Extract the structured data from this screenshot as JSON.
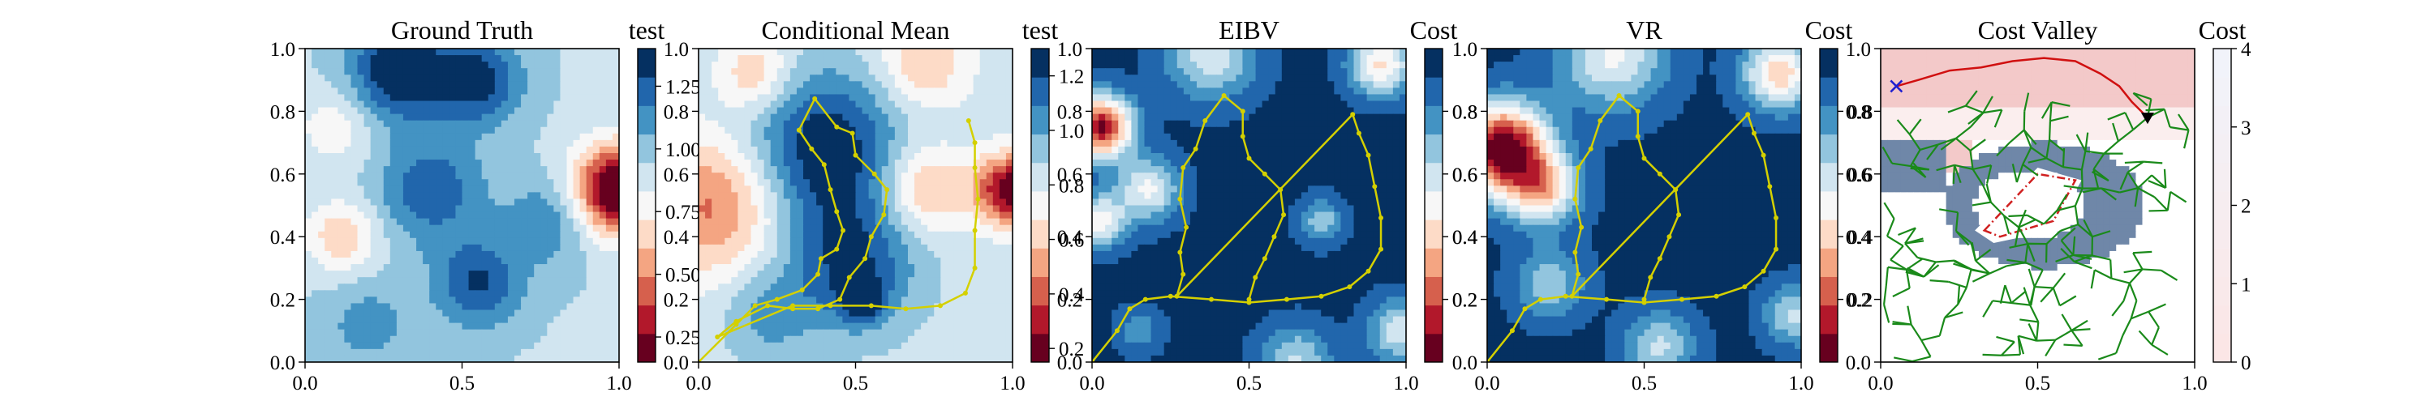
{
  "chart_data": [
    {
      "type": "heatmap",
      "title": "Ground Truth",
      "colorbar_label": "test",
      "x_ticks": [
        "0.0",
        "0.5",
        "1.0"
      ],
      "y_ticks": [
        "0.0",
        "0.2",
        "0.4",
        "0.6",
        "0.8",
        "1.0"
      ],
      "xlim": [
        0,
        1
      ],
      "ylim": [
        0,
        1
      ],
      "colorbar_range": [
        0.15,
        1.4
      ],
      "colorbar_ticks": [
        "0.25",
        "0.50",
        "0.75",
        "1.00",
        "1.25"
      ],
      "colorbar_tick_values": [
        0.25,
        0.5,
        0.75,
        1.0,
        1.25
      ],
      "blobs": [
        {
          "x": 0.3,
          "y": 0.93,
          "r": 0.11,
          "a": 0.55
        },
        {
          "x": 0.55,
          "y": 0.9,
          "r": 0.1,
          "a": 0.45
        },
        {
          "x": 0.4,
          "y": 0.55,
          "r": 0.12,
          "a": 0.35
        },
        {
          "x": 0.55,
          "y": 0.25,
          "r": 0.1,
          "a": 0.4
        },
        {
          "x": 0.78,
          "y": 0.45,
          "r": 0.1,
          "a": 0.25
        },
        {
          "x": 0.12,
          "y": 0.4,
          "r": 0.08,
          "a": -0.35
        },
        {
          "x": 0.2,
          "y": 0.12,
          "r": 0.1,
          "a": 0.2
        },
        {
          "x": 1.0,
          "y": 0.55,
          "r": 0.1,
          "a": -1.0
        },
        {
          "x": 0.1,
          "y": 0.75,
          "r": 0.09,
          "a": -0.2
        }
      ],
      "base": 0.95,
      "path": [],
      "overlay": "none"
    },
    {
      "type": "heatmap",
      "title": "Conditional Mean",
      "colorbar_label": "test",
      "x_ticks": [
        "0.0",
        "0.5",
        "1.0"
      ],
      "y_ticks": [
        "0.0",
        "0.2",
        "0.4",
        "0.6",
        "0.8",
        "1.0"
      ],
      "xlim": [
        0,
        1
      ],
      "ylim": [
        0,
        1
      ],
      "colorbar_range": [
        0.15,
        1.3
      ],
      "colorbar_ticks": [
        "0.2",
        "0.4",
        "0.6",
        "0.8",
        "1.0",
        "1.2"
      ],
      "colorbar_tick_values": [
        0.2,
        0.4,
        0.6,
        0.8,
        1.0,
        1.2
      ],
      "blobs": [
        {
          "x": 0.4,
          "y": 0.68,
          "r": 0.17,
          "a": 0.5
        },
        {
          "x": 0.48,
          "y": 0.32,
          "r": 0.15,
          "a": 0.4
        },
        {
          "x": 0.52,
          "y": 0.2,
          "r": 0.05,
          "a": 0.35
        },
        {
          "x": 0.05,
          "y": 0.5,
          "r": 0.16,
          "a": -0.45
        },
        {
          "x": 0.18,
          "y": 0.92,
          "r": 0.08,
          "a": -0.3
        },
        {
          "x": 0.72,
          "y": 0.95,
          "r": 0.1,
          "a": -0.3
        },
        {
          "x": 0.72,
          "y": 0.55,
          "r": 0.1,
          "a": -0.35
        },
        {
          "x": 1.0,
          "y": 0.55,
          "r": 0.08,
          "a": -0.75
        },
        {
          "x": 0.22,
          "y": 0.15,
          "r": 0.1,
          "a": 0.2
        }
      ],
      "base": 0.85,
      "path": [
        [
          0.0,
          0.0
        ],
        [
          0.12,
          0.12
        ],
        [
          0.18,
          0.18
        ],
        [
          0.25,
          0.2
        ],
        [
          0.33,
          0.23
        ],
        [
          0.38,
          0.28
        ],
        [
          0.39,
          0.33
        ],
        [
          0.44,
          0.36
        ],
        [
          0.46,
          0.42
        ],
        [
          0.44,
          0.48
        ],
        [
          0.42,
          0.55
        ],
        [
          0.4,
          0.63
        ],
        [
          0.36,
          0.68
        ],
        [
          0.32,
          0.74
        ],
        [
          0.37,
          0.84
        ],
        [
          0.44,
          0.75
        ],
        [
          0.49,
          0.73
        ],
        [
          0.5,
          0.66
        ],
        [
          0.56,
          0.6
        ],
        [
          0.6,
          0.55
        ],
        [
          0.59,
          0.47
        ],
        [
          0.55,
          0.4
        ],
        [
          0.53,
          0.33
        ],
        [
          0.48,
          0.27
        ],
        [
          0.45,
          0.2
        ],
        [
          0.38,
          0.17
        ],
        [
          0.3,
          0.17
        ],
        [
          0.22,
          0.18
        ],
        [
          0.12,
          0.13
        ],
        [
          0.06,
          0.08
        ],
        [
          0.3,
          0.18
        ],
        [
          0.42,
          0.18
        ],
        [
          0.55,
          0.18
        ],
        [
          0.66,
          0.17
        ],
        [
          0.77,
          0.18
        ],
        [
          0.85,
          0.22
        ],
        [
          0.88,
          0.3
        ],
        [
          0.88,
          0.42
        ],
        [
          0.89,
          0.52
        ],
        [
          0.88,
          0.62
        ],
        [
          0.88,
          0.7
        ],
        [
          0.86,
          0.77
        ]
      ],
      "overlay": "none"
    },
    {
      "type": "heatmap",
      "title": "EIBV",
      "colorbar_label": "Cost",
      "x_ticks": [
        "0.0",
        "0.5",
        "1.0"
      ],
      "y_ticks": [
        "0.0",
        "0.2",
        "0.4",
        "0.6",
        "0.8",
        "1.0"
      ],
      "xlim": [
        0,
        1
      ],
      "ylim": [
        0,
        1
      ],
      "colorbar_range": [
        0.0,
        1.0
      ],
      "colorbar_ticks": [
        "0.2",
        "0.4",
        "0.6",
        "0.8"
      ],
      "colorbar_tick_values": [
        0.2,
        0.4,
        0.6,
        0.8
      ],
      "blobs": [
        {
          "x": 0.03,
          "y": 0.75,
          "r": 0.07,
          "a": -0.95
        },
        {
          "x": 0.02,
          "y": 0.45,
          "r": 0.06,
          "a": -0.5
        },
        {
          "x": 0.38,
          "y": 0.98,
          "r": 0.1,
          "a": -0.4
        },
        {
          "x": 0.92,
          "y": 0.95,
          "r": 0.07,
          "a": -0.55
        },
        {
          "x": 0.73,
          "y": 0.45,
          "r": 0.05,
          "a": -0.3
        },
        {
          "x": 0.18,
          "y": 0.55,
          "r": 0.07,
          "a": -0.45
        },
        {
          "x": 0.65,
          "y": 0.0,
          "r": 0.08,
          "a": -0.35
        },
        {
          "x": 0.98,
          "y": 0.1,
          "r": 0.07,
          "a": -0.4
        },
        {
          "x": 0.15,
          "y": 0.1,
          "r": 0.05,
          "a": -0.2
        }
      ],
      "base": 0.98,
      "path": [
        [
          0.0,
          0.0
        ],
        [
          0.08,
          0.1
        ],
        [
          0.12,
          0.17
        ],
        [
          0.17,
          0.2
        ],
        [
          0.25,
          0.21
        ],
        [
          0.38,
          0.2
        ],
        [
          0.5,
          0.19
        ],
        [
          0.62,
          0.2
        ],
        [
          0.73,
          0.21
        ],
        [
          0.82,
          0.24
        ],
        [
          0.88,
          0.29
        ],
        [
          0.92,
          0.36
        ],
        [
          0.92,
          0.46
        ],
        [
          0.9,
          0.56
        ],
        [
          0.88,
          0.66
        ],
        [
          0.85,
          0.73
        ],
        [
          0.83,
          0.79
        ],
        [
          0.27,
          0.21
        ],
        [
          0.29,
          0.28
        ],
        [
          0.28,
          0.35
        ],
        [
          0.3,
          0.43
        ],
        [
          0.28,
          0.52
        ],
        [
          0.29,
          0.62
        ],
        [
          0.33,
          0.68
        ],
        [
          0.36,
          0.77
        ],
        [
          0.42,
          0.85
        ],
        [
          0.48,
          0.8
        ],
        [
          0.48,
          0.72
        ],
        [
          0.5,
          0.65
        ],
        [
          0.55,
          0.6
        ],
        [
          0.6,
          0.55
        ],
        [
          0.61,
          0.47
        ],
        [
          0.58,
          0.4
        ],
        [
          0.55,
          0.33
        ],
        [
          0.52,
          0.27
        ],
        [
          0.5,
          0.2
        ]
      ],
      "overlay": "none"
    },
    {
      "type": "heatmap",
      "title": "VR",
      "colorbar_label": "Cost",
      "x_ticks": [
        "0.0",
        "0.5",
        "1.0"
      ],
      "y_ticks": [
        "0.0",
        "0.2",
        "0.4",
        "0.6",
        "0.8",
        "1.0"
      ],
      "xlim": [
        0,
        1
      ],
      "ylim": [
        0,
        1
      ],
      "colorbar_range": [
        0.0,
        1.0
      ],
      "colorbar_ticks": [
        "0.2",
        "0.4",
        "0.6",
        "0.8"
      ],
      "colorbar_tick_values": [
        0.2,
        0.4,
        0.6,
        0.8
      ],
      "blobs": [
        {
          "x": 0.05,
          "y": 0.68,
          "r": 0.1,
          "a": -1.05
        },
        {
          "x": 0.4,
          "y": 0.98,
          "r": 0.12,
          "a": -0.45
        },
        {
          "x": 0.93,
          "y": 0.92,
          "r": 0.08,
          "a": -0.6
        },
        {
          "x": 0.18,
          "y": 0.55,
          "r": 0.08,
          "a": -0.55
        },
        {
          "x": 0.2,
          "y": 0.25,
          "r": 0.08,
          "a": -0.3
        },
        {
          "x": 0.55,
          "y": 0.05,
          "r": 0.08,
          "a": -0.35
        },
        {
          "x": 0.98,
          "y": 0.15,
          "r": 0.07,
          "a": -0.35
        }
      ],
      "base": 0.98,
      "path": [
        [
          0.0,
          0.0
        ],
        [
          0.08,
          0.1
        ],
        [
          0.12,
          0.17
        ],
        [
          0.17,
          0.2
        ],
        [
          0.25,
          0.21
        ],
        [
          0.38,
          0.2
        ],
        [
          0.5,
          0.19
        ],
        [
          0.62,
          0.2
        ],
        [
          0.73,
          0.21
        ],
        [
          0.82,
          0.24
        ],
        [
          0.88,
          0.29
        ],
        [
          0.92,
          0.36
        ],
        [
          0.92,
          0.46
        ],
        [
          0.9,
          0.56
        ],
        [
          0.88,
          0.66
        ],
        [
          0.85,
          0.73
        ],
        [
          0.83,
          0.79
        ],
        [
          0.27,
          0.21
        ],
        [
          0.29,
          0.28
        ],
        [
          0.28,
          0.35
        ],
        [
          0.3,
          0.43
        ],
        [
          0.28,
          0.52
        ],
        [
          0.29,
          0.62
        ],
        [
          0.33,
          0.68
        ],
        [
          0.36,
          0.77
        ],
        [
          0.42,
          0.85
        ],
        [
          0.48,
          0.8
        ],
        [
          0.48,
          0.72
        ],
        [
          0.5,
          0.65
        ],
        [
          0.55,
          0.6
        ],
        [
          0.6,
          0.55
        ],
        [
          0.61,
          0.47
        ],
        [
          0.58,
          0.4
        ],
        [
          0.55,
          0.33
        ],
        [
          0.52,
          0.27
        ],
        [
          0.5,
          0.2
        ]
      ],
      "overlay": "none"
    },
    {
      "type": "heatmap",
      "title": "Cost Valley",
      "colorbar_label": "Cost",
      "x_ticks": [
        "0.0",
        "0.5",
        "1.0"
      ],
      "y_ticks": [
        "0.0",
        "0.2",
        "0.4",
        "0.6",
        "0.8",
        "1.0"
      ],
      "xlim": [
        0,
        1
      ],
      "ylim": [
        0,
        1
      ],
      "colorbar_range": [
        0,
        4
      ],
      "colorbar_ticks": [
        "0",
        "1",
        "2",
        "3",
        "4"
      ],
      "colorbar_tick_values": [
        0,
        1,
        2,
        3,
        4
      ],
      "blobs": [],
      "base": 0,
      "path": [],
      "overlay": "cost_valley",
      "start_marker": {
        "x": 0.05,
        "y": 0.88,
        "color": "#1f1fd0"
      },
      "end_marker": {
        "x": 0.85,
        "y": 0.78,
        "color": "#000000"
      },
      "red_path": [
        [
          0.05,
          0.88
        ],
        [
          0.12,
          0.9
        ],
        [
          0.22,
          0.93
        ],
        [
          0.32,
          0.94
        ],
        [
          0.42,
          0.96
        ],
        [
          0.52,
          0.97
        ],
        [
          0.62,
          0.96
        ],
        [
          0.7,
          0.92
        ],
        [
          0.76,
          0.88
        ],
        [
          0.8,
          0.83
        ],
        [
          0.85,
          0.78
        ]
      ],
      "obstacle": [
        [
          0.33,
          0.42
        ],
        [
          0.5,
          0.6
        ],
        [
          0.62,
          0.58
        ],
        [
          0.55,
          0.45
        ],
        [
          0.38,
          0.4
        ]
      ],
      "highlight": [
        [
          0.3,
          0.42
        ],
        [
          0.5,
          0.62
        ],
        [
          0.64,
          0.58
        ],
        [
          0.55,
          0.42
        ],
        [
          0.36,
          0.38
        ]
      ]
    }
  ],
  "colors": {
    "rdbu": [
      "#67001f",
      "#b2182b",
      "#d6604d",
      "#f4a582",
      "#fddbc7",
      "#f7f7f7",
      "#d1e5f0",
      "#92c5de",
      "#4393c3",
      "#2166ac",
      "#053061"
    ],
    "path": "#d4d000",
    "tree": "#1a8a1a",
    "valley_pink": "#f3c9c9",
    "valley_blue": "#6f87a8",
    "valley_white": "#fbeeee"
  }
}
